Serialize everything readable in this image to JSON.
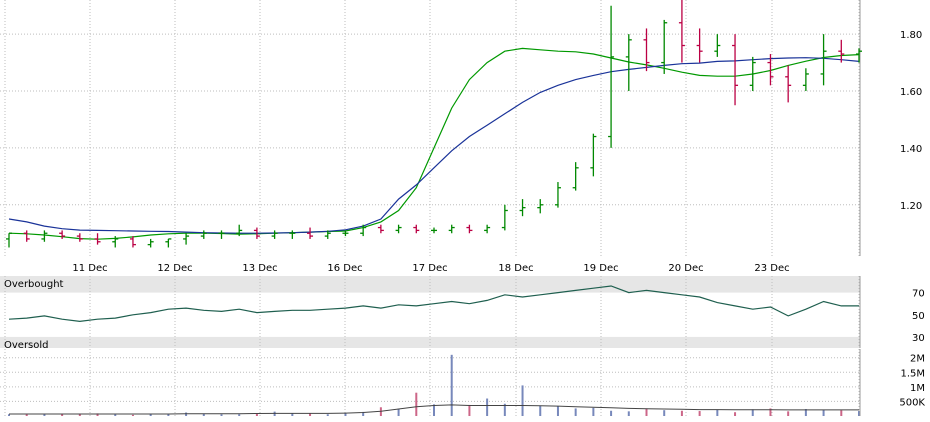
{
  "chart_data": [
    {
      "type": "candlestick",
      "x_labels": [
        "11 Dec",
        "12 Dec",
        "13 Dec",
        "16 Dec",
        "17 Dec",
        "18 Dec",
        "19 Dec",
        "20 Dec",
        "23 Dec"
      ],
      "y_ticks": [
        "1.80",
        "1.60",
        "1.40",
        "1.20"
      ],
      "ylim": [
        1.02,
        1.92
      ],
      "grid": true,
      "candle_colors": {
        "up": "#008800",
        "down": "#bb0044"
      },
      "series": [
        {
          "line": "short_ma",
          "color": "#009900",
          "values": [
            1.1,
            1.098,
            1.094,
            1.088,
            1.081,
            1.079,
            1.082,
            1.087,
            1.094,
            1.098,
            1.1,
            1.1,
            1.099,
            1.097,
            1.098,
            1.1,
            1.102,
            1.104,
            1.106,
            1.108,
            1.12,
            1.14,
            1.18,
            1.26,
            1.4,
            1.54,
            1.64,
            1.7,
            1.74,
            1.75,
            1.745,
            1.74,
            1.738,
            1.73,
            1.716,
            1.702,
            1.692,
            1.68,
            1.666,
            1.655,
            1.652,
            1.652,
            1.66,
            1.672,
            1.69,
            1.705,
            1.718,
            1.725,
            1.728
          ]
        },
        {
          "line": "long_ma",
          "color": "#1a3399",
          "values": [
            1.15,
            1.14,
            1.125,
            1.116,
            1.111,
            1.11,
            1.109,
            1.108,
            1.107,
            1.106,
            1.104,
            1.102,
            1.101,
            1.1,
            1.1,
            1.101,
            1.102,
            1.104,
            1.107,
            1.112,
            1.125,
            1.15,
            1.22,
            1.27,
            1.33,
            1.39,
            1.44,
            1.48,
            1.52,
            1.56,
            1.595,
            1.62,
            1.64,
            1.655,
            1.668,
            1.676,
            1.683,
            1.69,
            1.696,
            1.698,
            1.704,
            1.706,
            1.71,
            1.714,
            1.716,
            1.717,
            1.715,
            1.71,
            1.704
          ]
        }
      ],
      "ohlc": [
        [
          1.08,
          1.1,
          1.05,
          1.1
        ],
        [
          1.1,
          1.11,
          1.07,
          1.08
        ],
        [
          1.08,
          1.11,
          1.07,
          1.1
        ],
        [
          1.1,
          1.11,
          1.08,
          1.09
        ],
        [
          1.09,
          1.1,
          1.07,
          1.08
        ],
        [
          1.08,
          1.1,
          1.06,
          1.07
        ],
        [
          1.07,
          1.09,
          1.05,
          1.08
        ],
        [
          1.08,
          1.09,
          1.05,
          1.06
        ],
        [
          1.06,
          1.08,
          1.05,
          1.07
        ],
        [
          1.07,
          1.08,
          1.05,
          1.08
        ],
        [
          1.08,
          1.1,
          1.06,
          1.09
        ],
        [
          1.09,
          1.11,
          1.08,
          1.1
        ],
        [
          1.1,
          1.11,
          1.08,
          1.1
        ],
        [
          1.1,
          1.13,
          1.09,
          1.11
        ],
        [
          1.11,
          1.12,
          1.08,
          1.09
        ],
        [
          1.09,
          1.11,
          1.08,
          1.1
        ],
        [
          1.1,
          1.11,
          1.08,
          1.1
        ],
        [
          1.1,
          1.12,
          1.08,
          1.09
        ],
        [
          1.09,
          1.11,
          1.08,
          1.1
        ],
        [
          1.1,
          1.11,
          1.09,
          1.1
        ],
        [
          1.1,
          1.13,
          1.09,
          1.12
        ],
        [
          1.12,
          1.13,
          1.1,
          1.11
        ],
        [
          1.11,
          1.13,
          1.1,
          1.12
        ],
        [
          1.12,
          1.13,
          1.1,
          1.11
        ],
        [
          1.11,
          1.12,
          1.1,
          1.11
        ],
        [
          1.11,
          1.13,
          1.1,
          1.12
        ],
        [
          1.12,
          1.13,
          1.1,
          1.11
        ],
        [
          1.11,
          1.13,
          1.1,
          1.12
        ],
        [
          1.12,
          1.2,
          1.11,
          1.18
        ],
        [
          1.18,
          1.22,
          1.16,
          1.19
        ],
        [
          1.19,
          1.22,
          1.17,
          1.2
        ],
        [
          1.2,
          1.28,
          1.19,
          1.26
        ],
        [
          1.26,
          1.35,
          1.25,
          1.33
        ],
        [
          1.33,
          1.45,
          1.3,
          1.44
        ],
        [
          1.44,
          1.9,
          1.4,
          1.72
        ],
        [
          1.72,
          1.8,
          1.6,
          1.78
        ],
        [
          1.78,
          1.82,
          1.67,
          1.7
        ],
        [
          1.7,
          1.85,
          1.66,
          1.84
        ],
        [
          1.84,
          1.93,
          1.7,
          1.76
        ],
        [
          1.76,
          1.82,
          1.7,
          1.74
        ],
        [
          1.74,
          1.8,
          1.72,
          1.76
        ],
        [
          1.76,
          1.8,
          1.55,
          1.62
        ],
        [
          1.62,
          1.72,
          1.6,
          1.7
        ],
        [
          1.7,
          1.73,
          1.62,
          1.65
        ],
        [
          1.65,
          1.69,
          1.56,
          1.62
        ],
        [
          1.62,
          1.68,
          1.6,
          1.66
        ],
        [
          1.66,
          1.8,
          1.62,
          1.74
        ],
        [
          1.74,
          1.78,
          1.7,
          1.73
        ],
        [
          1.73,
          1.75,
          1.7,
          1.74
        ]
      ]
    },
    {
      "type": "line",
      "labels": {
        "top": "Overbought",
        "bottom": "Oversold"
      },
      "y_ticks": [
        "70",
        "50",
        "30"
      ],
      "ylim": [
        20,
        85
      ],
      "zones": [
        {
          "from": 70,
          "to": 85,
          "color": "#e6e6e6"
        },
        {
          "from": 20,
          "to": 30,
          "color": "#e6e6e6"
        }
      ],
      "series": [
        {
          "color": "#1f5f4f",
          "values": [
            46,
            47,
            49,
            46,
            44,
            46,
            47,
            50,
            52,
            55,
            56,
            54,
            53,
            55,
            52,
            53,
            54,
            54,
            55,
            56,
            58,
            56,
            59,
            58,
            60,
            62,
            60,
            63,
            68,
            66,
            68,
            70,
            72,
            74,
            76,
            70,
            72,
            70,
            68,
            66,
            61,
            58,
            55,
            57,
            49,
            55,
            62,
            58,
            58
          ]
        }
      ]
    },
    {
      "type": "bar",
      "y_ticks": [
        "2M",
        "1.5M",
        "1M",
        "500K"
      ],
      "ylim": [
        0,
        2300000
      ],
      "bar_color": "#7788bb",
      "series": [
        {
          "name": "volume",
          "values": [
            60000,
            50000,
            80000,
            70000,
            60000,
            90000,
            50000,
            40000,
            70000,
            60000,
            120000,
            80000,
            60000,
            60000,
            70000,
            150000,
            90000,
            100000,
            60000,
            90000,
            140000,
            300000,
            250000,
            800000,
            400000,
            2100000,
            380000,
            600000,
            420000,
            1050000,
            350000,
            330000,
            260000,
            280000,
            180000,
            160000,
            260000,
            200000,
            180000,
            170000,
            220000,
            130000,
            230000,
            260000,
            160000,
            240000,
            220000,
            200000,
            170000
          ]
        },
        {
          "name": "average",
          "color": "#444444",
          "values": [
            70000,
            70000,
            70000,
            70000,
            70000,
            70000,
            70000,
            70000,
            70000,
            70000,
            80000,
            80000,
            80000,
            80000,
            85000,
            90000,
            90000,
            90000,
            90000,
            100000,
            120000,
            160000,
            240000,
            320000,
            360000,
            380000,
            360000,
            360000,
            360000,
            360000,
            350000,
            340000,
            320000,
            300000,
            280000,
            260000,
            250000,
            240000,
            230000,
            220000,
            220000,
            215000,
            215000,
            215000,
            210000,
            210000,
            210000,
            210000,
            210000
          ]
        }
      ]
    }
  ]
}
